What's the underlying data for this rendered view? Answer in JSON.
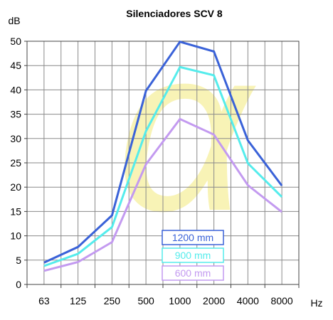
{
  "chart_data": {
    "type": "line",
    "title": "Silenciadores SCV 8",
    "ylabel": "dB",
    "xlabel": "Hz",
    "ylim": [
      0,
      50
    ],
    "yticks": [
      0,
      5,
      10,
      15,
      20,
      25,
      30,
      35,
      40,
      45,
      50
    ],
    "categories": [
      "63",
      "125",
      "250",
      "500",
      "1000",
      "2000",
      "4000",
      "8000"
    ],
    "grid": true,
    "legend_position": "lower-center",
    "series": [
      {
        "name": "1200 mm",
        "color": "#3a62d8",
        "values": [
          4.5,
          7.7,
          14.2,
          39.8,
          49.9,
          47.9,
          29.6,
          20.3
        ]
      },
      {
        "name": "900 mm",
        "color": "#55ecec",
        "values": [
          3.8,
          6.3,
          11.8,
          31.5,
          44.7,
          43.0,
          24.9,
          18.0
        ]
      },
      {
        "name": "600 mm",
        "color": "#c39af0",
        "values": [
          2.8,
          4.6,
          8.7,
          24.7,
          34.0,
          30.8,
          20.4,
          14.9
        ]
      }
    ],
    "watermark": {
      "glyph": "α",
      "color": "#f2e870",
      "opacity": 0.5
    }
  }
}
